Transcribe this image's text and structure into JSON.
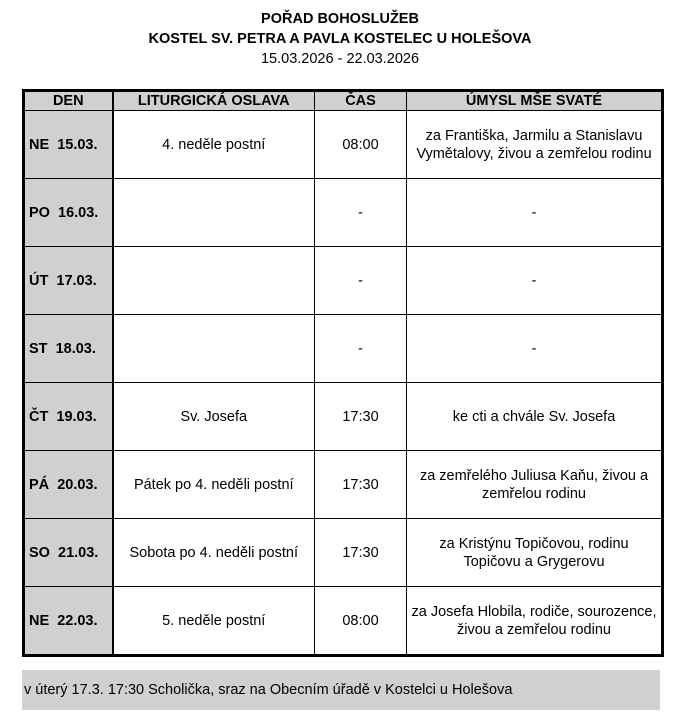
{
  "header": {
    "title": "POŘAD BOHOSLUŽEB",
    "church": "KOSTEL SV. PETRA A PAVLA KOSTELEC U HOLEŠOVA",
    "date_range": "15.03.2026 - 22.03.2026"
  },
  "table": {
    "columns": [
      "DEN",
      "LITURGICKÁ OSLAVA",
      "ČAS",
      "ÚMYSL MŠE SVATÉ"
    ],
    "rows": [
      {
        "day": "NE  15.03.",
        "celebration": "4. neděle postní",
        "time": "08:00",
        "intention": "za Františka, Jarmilu a Stanislavu Vymětalovy, živou a zemřelou rodinu"
      },
      {
        "day": "PO  16.03.",
        "celebration": "",
        "time": "-",
        "intention": "-"
      },
      {
        "day": "ÚT  17.03.",
        "celebration": "",
        "time": "-",
        "intention": "-"
      },
      {
        "day": "ST  18.03.",
        "celebration": "",
        "time": "-",
        "intention": "-"
      },
      {
        "day": "ČT  19.03.",
        "celebration": "Sv. Josefa",
        "time": "17:30",
        "intention": "ke cti a chvále Sv. Josefa"
      },
      {
        "day": "PÁ  20.03.",
        "celebration": "Pátek po 4. neděli postní",
        "time": "17:30",
        "intention": "za zemřelého Juliusa Kaňu, živou a zemřelou rodinu"
      },
      {
        "day": "SO  21.03.",
        "celebration": "Sobota po 4. neděli postní",
        "time": "17:30",
        "intention": "za Kristýnu Topičovou, rodinu Topičovu a Grygerovu"
      },
      {
        "day": "NE  22.03.",
        "celebration": "5. neděle postní",
        "time": "08:00",
        "intention": "za Josefa Hlobila, rodiče, sourozence, živou a zemřelou rodinu"
      }
    ]
  },
  "note": "v úterý 17.3. 17:30 Scholička, sraz na Obecním úřadě v Kostelci u Holešova"
}
